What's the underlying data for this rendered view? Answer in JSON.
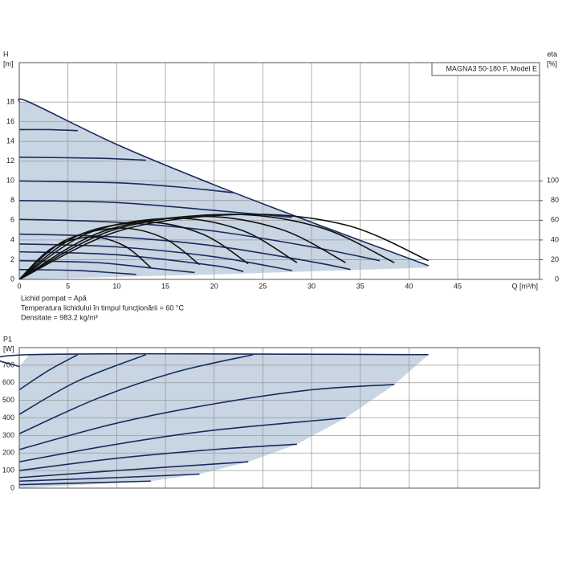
{
  "chart_data": [
    {
      "type": "line",
      "title": "MAGNA3 50-180 F, Model E",
      "xlabel": "Q [m³/h]",
      "ylabel": [
        "H",
        "[m]"
      ],
      "y2label": [
        "eta",
        "[%]"
      ],
      "xlim": [
        0,
        53.4
      ],
      "xticks": [
        0,
        5,
        10,
        15,
        20,
        25,
        30,
        35,
        40,
        45
      ],
      "ylim": [
        0,
        22
      ],
      "yticks": [
        0,
        2,
        4,
        6,
        8,
        10,
        12,
        14,
        16,
        18
      ],
      "y2lim": [
        0,
        220
      ],
      "y2ticks": [
        0,
        20,
        40,
        60,
        80,
        100
      ],
      "grid": true,
      "notes": [
        "Lichid pompat = Apă",
        "Temperatura lichidului în timpul funcţionării = 60 °C",
        "Densitate = 983.2 kg/m³"
      ],
      "area": {
        "color": "#c8d5e3",
        "x": [
          0,
          1,
          10,
          20,
          30,
          42,
          42,
          20,
          0
        ],
        "values": [
          18,
          18,
          13.7,
          9.6,
          5.8,
          1.4,
          1.2,
          0.5,
          0
        ]
      },
      "series": [
        {
          "color": "#1b2a5c",
          "x": [
            0,
            1,
            10,
            20,
            30,
            42
          ],
          "values": [
            18,
            18,
            13.7,
            9.6,
            5.8,
            1.4
          ]
        },
        {
          "color": "#1b2a5c",
          "x": [
            0,
            3,
            6
          ],
          "values": [
            15.2,
            15.2,
            15.1
          ]
        },
        {
          "color": "#1b2a5c",
          "x": [
            0,
            8,
            13
          ],
          "values": [
            12.4,
            12.3,
            12.1
          ]
        },
        {
          "color": "#1b2a5c",
          "x": [
            0,
            10,
            16,
            22
          ],
          "values": [
            10,
            9.8,
            9.4,
            8.8
          ]
        },
        {
          "color": "#1b2a5c",
          "x": [
            0,
            10,
            20,
            28
          ],
          "values": [
            8,
            7.8,
            7,
            6.3
          ]
        },
        {
          "color": "#1b2a5c",
          "x": [
            0,
            10,
            20,
            30,
            37
          ],
          "values": [
            6.1,
            5.8,
            4.9,
            3.3,
            1.9
          ]
        },
        {
          "color": "#1b2a5c",
          "x": [
            0,
            10,
            20,
            30,
            34
          ],
          "values": [
            4.6,
            4.3,
            3.4,
            1.8,
            1.0
          ]
        },
        {
          "color": "#1b2a5c",
          "x": [
            0,
            10,
            20,
            28
          ],
          "values": [
            3.6,
            3.3,
            2.3,
            0.9
          ]
        },
        {
          "color": "#1b2a5c",
          "x": [
            0,
            10,
            20,
            23
          ],
          "values": [
            2.8,
            2.5,
            1.4,
            0.8
          ]
        },
        {
          "color": "#1b2a5c",
          "x": [
            0,
            8,
            14,
            18
          ],
          "values": [
            1.9,
            1.7,
            1.1,
            0.7
          ]
        },
        {
          "color": "#1b2a5c",
          "x": [
            0,
            6,
            12
          ],
          "values": [
            1.0,
            0.9,
            0.5
          ]
        },
        {
          "color": "#111111",
          "axis": "y2",
          "x": [
            0,
            3.4,
            7.4,
            10.8,
            13.5
          ],
          "values": [
            0,
            32,
            43,
            34,
            12
          ]
        },
        {
          "color": "#111111",
          "axis": "y2",
          "x": [
            0,
            4.6,
            10.2,
            14.8,
            18.5
          ],
          "values": [
            0,
            39,
            52,
            42,
            15
          ]
        },
        {
          "color": "#111111",
          "axis": "y2",
          "x": [
            0,
            5.9,
            12.9,
            18.8,
            23.5
          ],
          "values": [
            0,
            44,
            58,
            46,
            16
          ]
        },
        {
          "color": "#111111",
          "axis": "y2",
          "x": [
            0,
            7.1,
            15.7,
            22.8,
            28.5
          ],
          "values": [
            0,
            47,
            62,
            50,
            17
          ]
        },
        {
          "color": "#111111",
          "axis": "y2",
          "x": [
            0,
            8.4,
            18.4,
            26.8,
            33.5
          ],
          "values": [
            0,
            48,
            64,
            51,
            17
          ]
        },
        {
          "color": "#111111",
          "axis": "y2",
          "x": [
            0,
            9.6,
            21.2,
            30.8,
            38.5
          ],
          "values": [
            0,
            50,
            66,
            53,
            17
          ]
        },
        {
          "color": "#111111",
          "axis": "y2",
          "x": [
            0,
            10.5,
            23.1,
            33.6,
            42
          ],
          "values": [
            0,
            50,
            66,
            55,
            19
          ]
        }
      ]
    },
    {
      "type": "line",
      "ylabel": [
        "P1",
        "[W]"
      ],
      "xlim": [
        0,
        53.4
      ],
      "ylim": [
        0,
        800
      ],
      "yticks": [
        0,
        100,
        200,
        300,
        400,
        500,
        600,
        700
      ],
      "grid": true,
      "area": {
        "color": "#c8d5e3",
        "x": [
          0,
          1,
          42,
          38.5,
          33.5,
          28.5,
          23.5,
          18.5,
          13.5,
          0
        ],
        "values": [
          690,
          760,
          760,
          590,
          400,
          250,
          150,
          80,
          40,
          0
        ]
      },
      "series": [
        {
          "color": "#1b2a5c",
          "x": [
            0,
            1,
            42
          ],
          "values": [
            690,
            760,
            760
          ]
        },
        {
          "color": "#1b2a5c",
          "x": [
            0,
            3,
            6
          ],
          "values": [
            560,
            670,
            760
          ]
        },
        {
          "color": "#1b2a5c",
          "x": [
            0,
            6,
            13
          ],
          "values": [
            420,
            610,
            760
          ]
        },
        {
          "color": "#1b2a5c",
          "x": [
            0,
            8,
            16,
            24
          ],
          "values": [
            310,
            510,
            660,
            760
          ]
        },
        {
          "color": "#1b2a5c",
          "x": [
            0,
            10,
            20,
            30,
            38.5
          ],
          "values": [
            220,
            370,
            480,
            560,
            590
          ]
        },
        {
          "color": "#1b2a5c",
          "x": [
            0,
            10,
            20,
            33.5
          ],
          "values": [
            150,
            250,
            330,
            400
          ]
        },
        {
          "color": "#1b2a5c",
          "x": [
            0,
            10,
            20,
            28.5
          ],
          "values": [
            100,
            170,
            220,
            250
          ]
        },
        {
          "color": "#1b2a5c",
          "x": [
            0,
            10,
            23.5
          ],
          "values": [
            60,
            100,
            150
          ]
        },
        {
          "color": "#1b2a5c",
          "x": [
            0,
            10,
            18.5
          ],
          "values": [
            40,
            60,
            80
          ]
        },
        {
          "color": "#1b2a5c",
          "x": [
            0,
            7,
            13.5
          ],
          "values": [
            20,
            30,
            40
          ]
        }
      ]
    }
  ]
}
